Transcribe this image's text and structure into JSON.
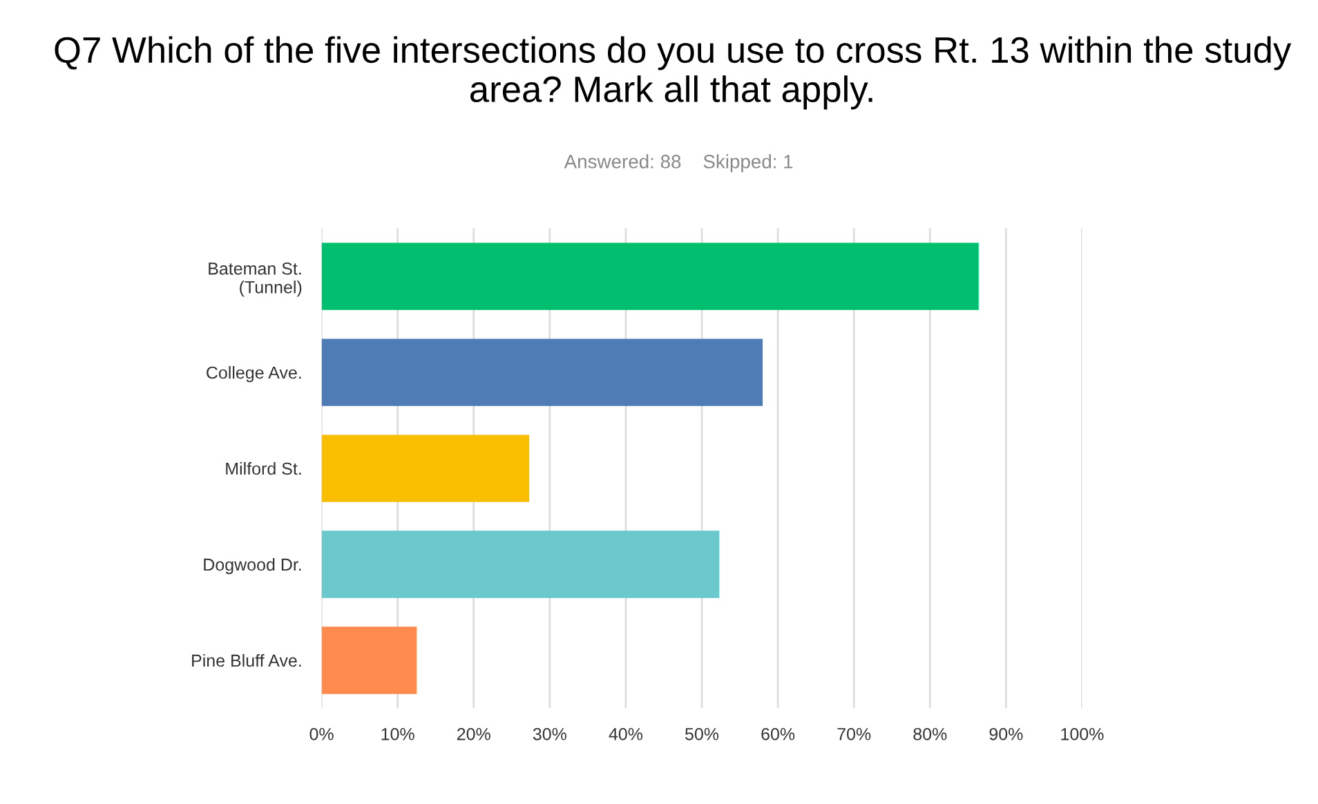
{
  "chart_data": {
    "type": "bar",
    "orientation": "horizontal",
    "title": "Q7 Which of the five intersections do you use to cross Rt. 13 within the study area? Mark all that apply.",
    "subtitle": "Answered: 88    Skipped: 1",
    "categories": [
      "Bateman St.\n(Tunnel)",
      "College Ave.",
      "Milford St.",
      "Dogwood Dr.",
      "Pine Bluff Ave."
    ],
    "values": [
      86.4,
      58.0,
      27.3,
      52.3,
      12.5
    ],
    "colors": [
      "#00bf6f",
      "#507cb6",
      "#f9be00",
      "#6bc8cd",
      "#ff8b4f"
    ],
    "xlim": [
      0,
      100
    ],
    "xticks": [
      {
        "value": 0,
        "label": "0%"
      },
      {
        "value": 10,
        "label": "10%"
      },
      {
        "value": 20,
        "label": "20%"
      },
      {
        "value": 30,
        "label": "30%"
      },
      {
        "value": 40,
        "label": "40%"
      },
      {
        "value": 50,
        "label": "50%"
      },
      {
        "value": 60,
        "label": "60%"
      },
      {
        "value": 70,
        "label": "70%"
      },
      {
        "value": 80,
        "label": "80%"
      },
      {
        "value": 90,
        "label": "90%"
      },
      {
        "value": 100,
        "label": "100%"
      }
    ],
    "grid": "x",
    "legend": false
  }
}
